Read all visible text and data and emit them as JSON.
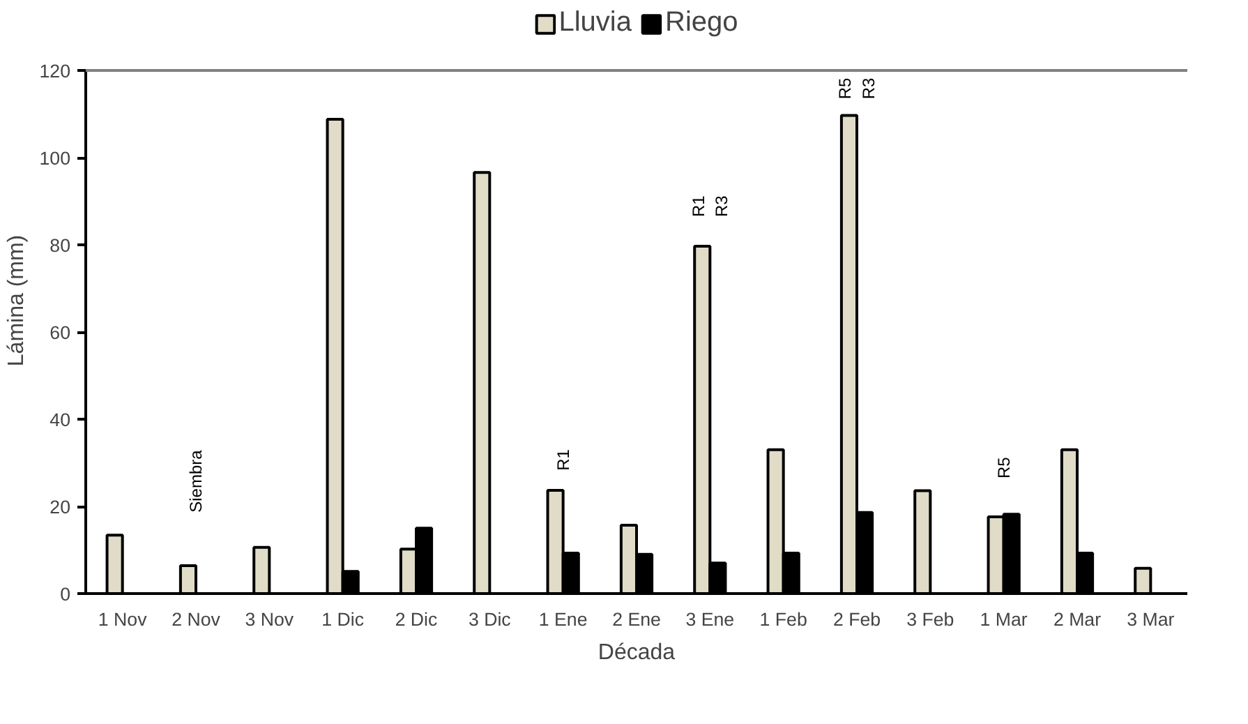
{
  "chart_data": {
    "type": "bar",
    "xlabel": "Década",
    "ylabel": "Lámina (mm)",
    "categories": [
      "1 Nov",
      "2 Nov",
      "3 Nov",
      "1 Dic",
      "2 Dic",
      "3 Dic",
      "1 Ene",
      "2 Ene",
      "3 Ene",
      "1 Feb",
      "2 Feb",
      "3 Feb",
      "1 Mar",
      "2 Mar",
      "3 Mar"
    ],
    "series": [
      {
        "name": "Lluvia",
        "color": "#e0dcc8",
        "values": [
          13.4,
          6.4,
          10.6,
          108.8,
          10.2,
          96.6,
          23.7,
          15.7,
          79.7,
          33,
          109.7,
          23.6,
          17.6,
          33,
          5.8
        ]
      },
      {
        "name": "Riego",
        "color": "#000000",
        "values": [
          null,
          null,
          null,
          5.1,
          15,
          null,
          9.3,
          9,
          7,
          9.3,
          18.6,
          null,
          18.2,
          9.3,
          null
        ]
      }
    ],
    "ylim": [
      0,
      120
    ],
    "yticks": [
      0,
      20,
      40,
      60,
      80,
      100,
      120
    ],
    "grid": false,
    "legend": "top",
    "annotations": [
      "Siembra",
      "R1",
      "R1\nR3",
      "R5\nR3",
      "R5"
    ]
  }
}
